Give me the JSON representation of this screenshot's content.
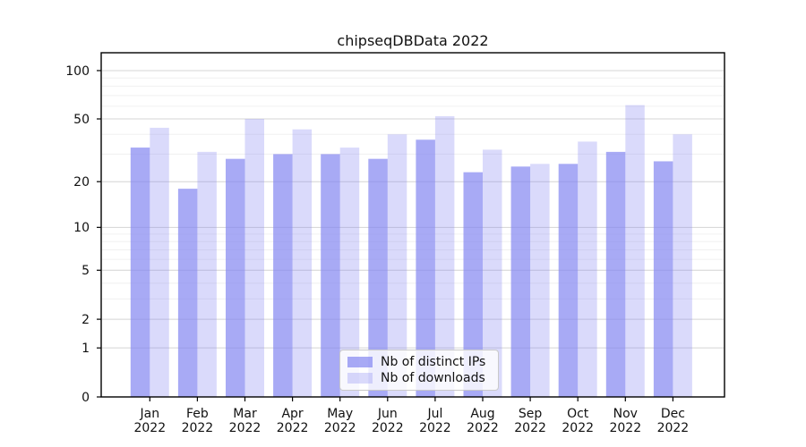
{
  "chart_data": {
    "type": "bar",
    "title": "chipseqDBData 2022",
    "categories": [
      "Jan",
      "Feb",
      "Mar",
      "Apr",
      "May",
      "Jun",
      "Jul",
      "Aug",
      "Sep",
      "Oct",
      "Nov",
      "Dec"
    ],
    "x_tick_second_line": "2022",
    "series": [
      {
        "name": "Nb of distinct IPs",
        "color": "rgba(131,134,241,0.7)",
        "values": [
          33,
          18,
          28,
          30,
          30,
          28,
          37,
          23,
          25,
          26,
          31,
          27
        ]
      },
      {
        "name": "Nb of downloads",
        "color": "rgba(131,134,241,0.3)",
        "values": [
          44,
          31,
          50,
          43,
          33,
          40,
          52,
          32,
          26,
          36,
          61,
          40
        ]
      }
    ],
    "y_axis": {
      "scale": "log1p",
      "ticks": [
        0,
        1,
        2,
        5,
        10,
        20,
        50,
        100
      ],
      "minor_ticks": [
        3,
        4,
        6,
        7,
        8,
        9,
        30,
        40,
        60,
        70,
        80,
        90
      ],
      "ylim": [
        0,
        129
      ]
    },
    "legend": {
      "position": "lower center"
    },
    "grid": true,
    "colors": {
      "major_grid": "#d4d4d4",
      "minor_grid": "#f0f0f0",
      "axis": "#000000",
      "tick_text": "#111111"
    }
  }
}
